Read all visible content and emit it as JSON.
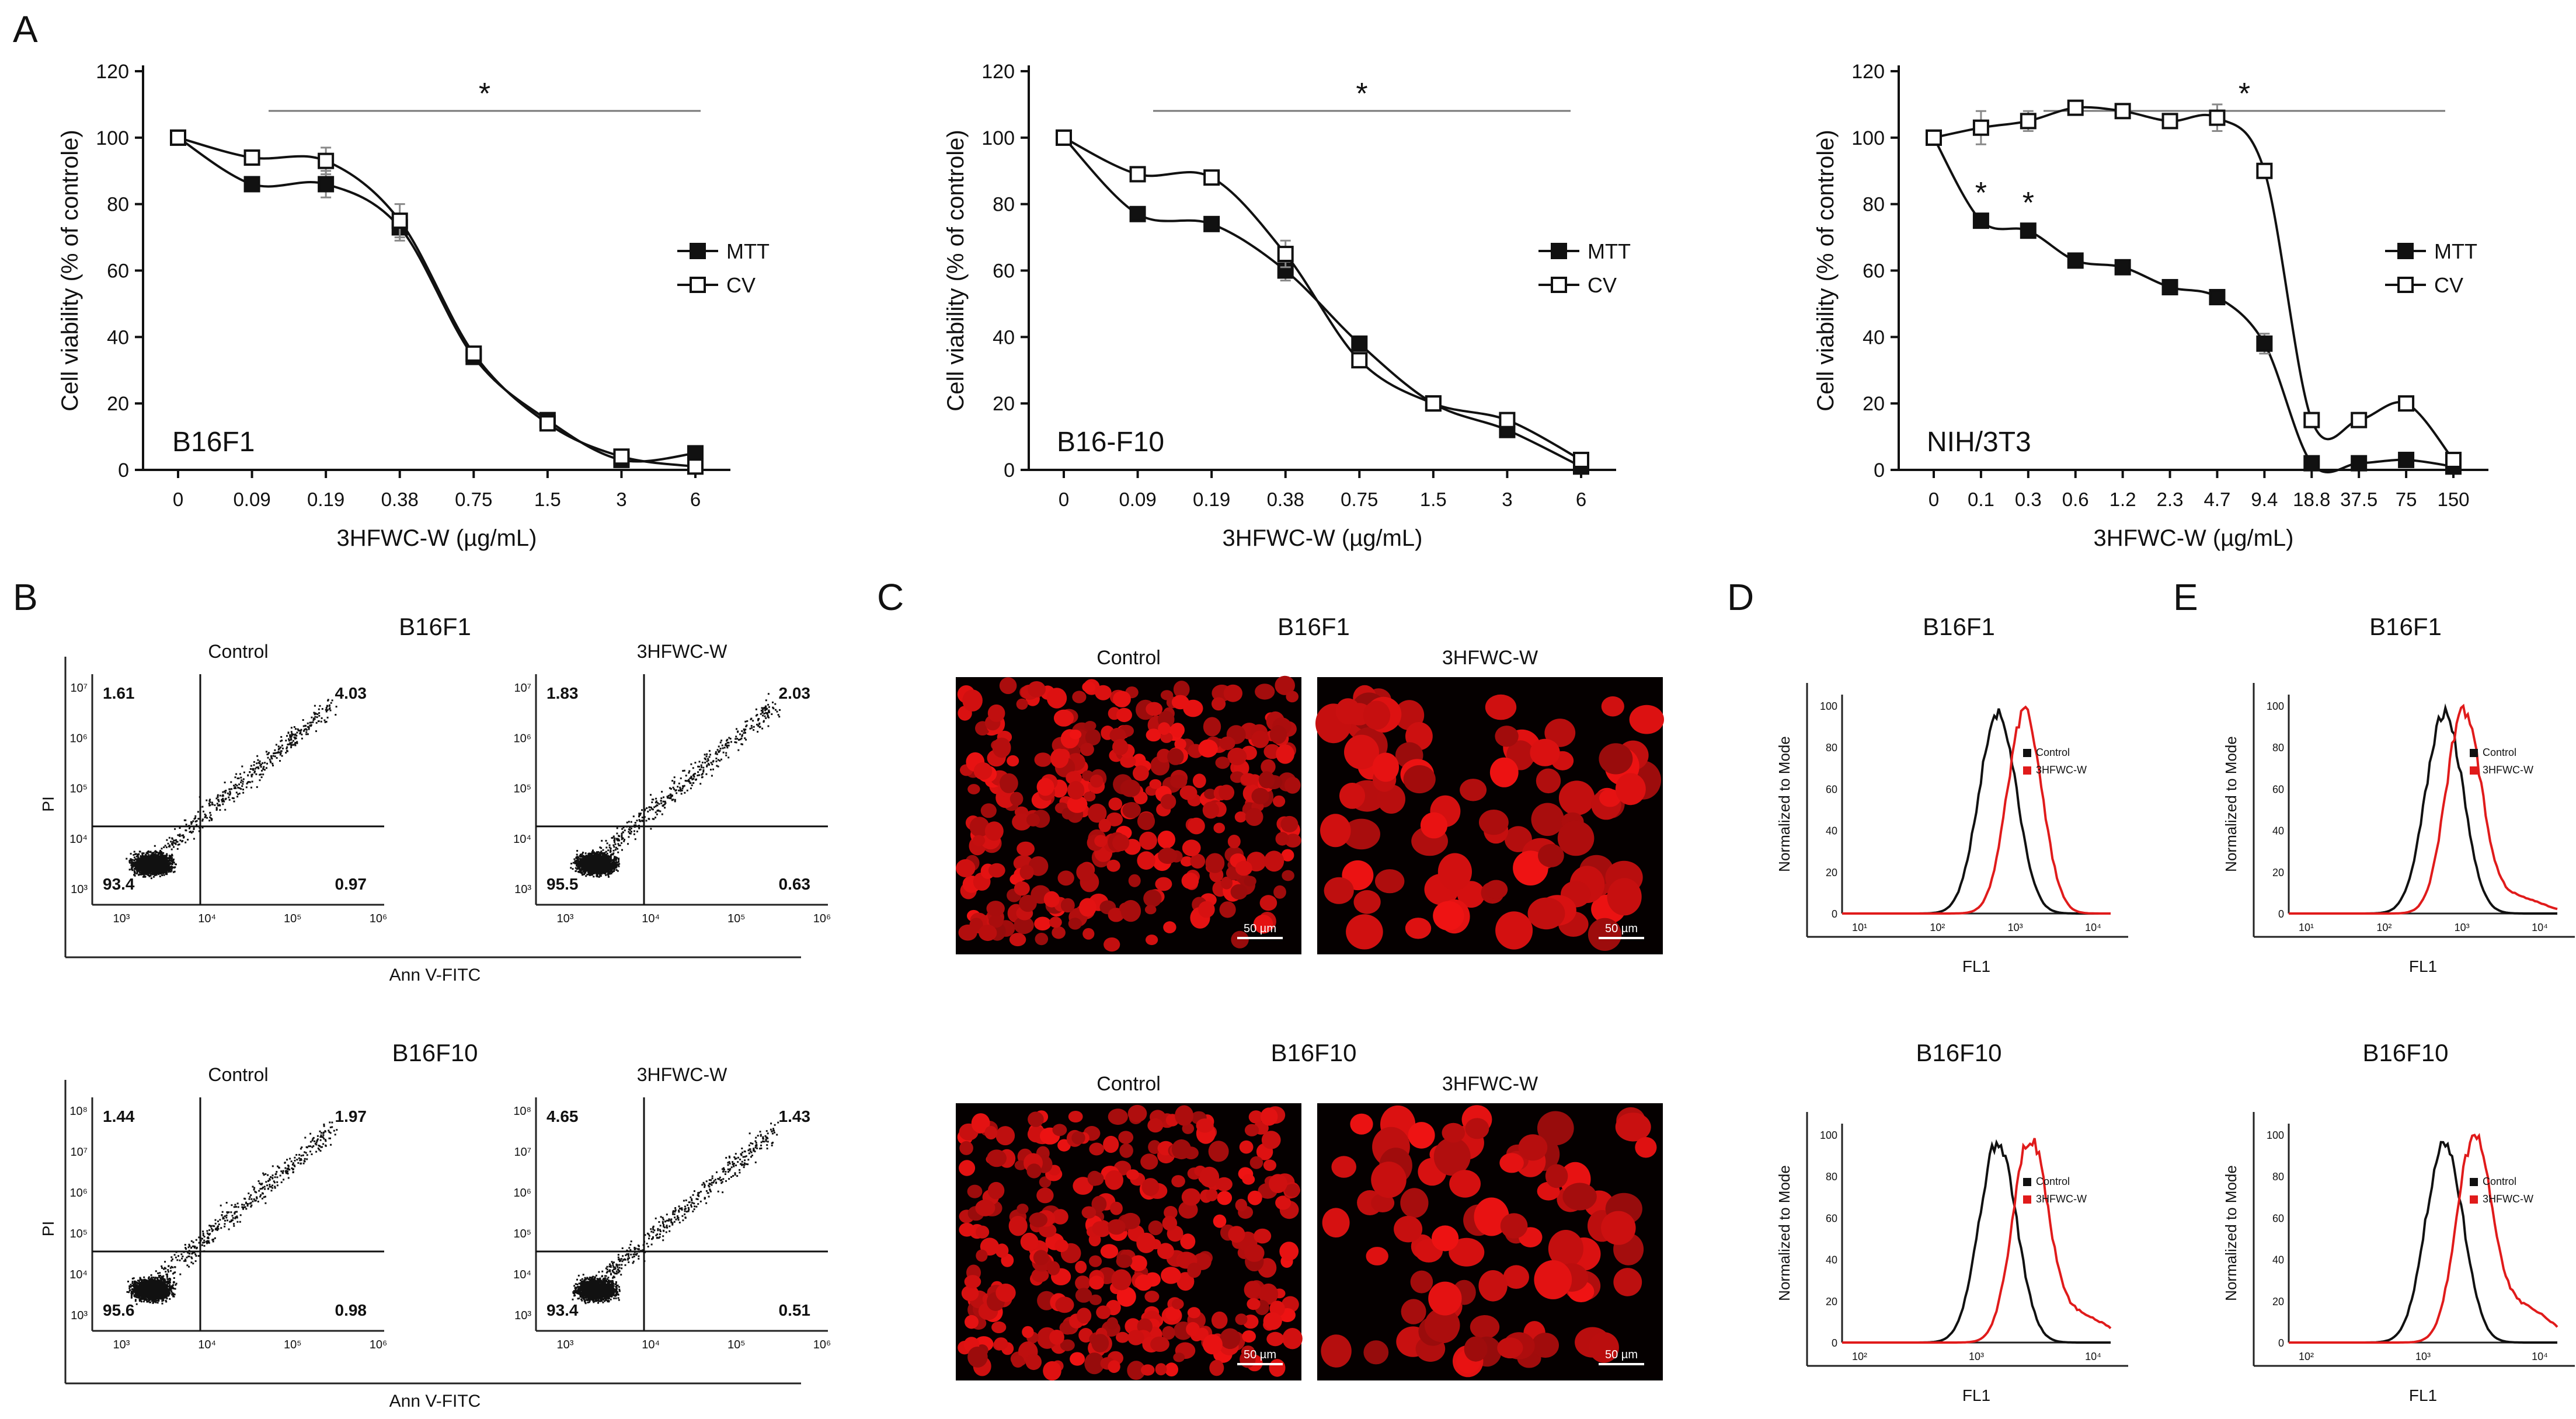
{
  "panel_labels": [
    "A",
    "B",
    "C",
    "D",
    "E"
  ],
  "chart_data": [
    {
      "type": "line",
      "id": "B16F1",
      "cell_line": "B16F1",
      "categories": [
        "0",
        "0.09",
        "0.19",
        "0.38",
        "0.75",
        "1.5",
        "3",
        "6"
      ],
      "series": [
        {
          "name": "MTT",
          "marker": "filled-square",
          "values": [
            100,
            86,
            86,
            73,
            34,
            15,
            3,
            5
          ],
          "errors": [
            0,
            1,
            4,
            4,
            1,
            1,
            1,
            1
          ]
        },
        {
          "name": "CV",
          "marker": "open-square",
          "values": [
            100,
            94,
            93,
            75,
            35,
            14,
            4,
            1
          ],
          "errors": [
            0,
            1,
            4,
            5,
            1,
            1,
            1,
            1
          ]
        }
      ],
      "xlabel": "3HFWC-W (µg/mL)",
      "ylabel": "Cell viability (% of controle)",
      "ylim": [
        0,
        120
      ],
      "yticks": [
        "0",
        "20",
        "40",
        "60",
        "80",
        "100",
        "120"
      ],
      "significance": "*"
    },
    {
      "type": "line",
      "id": "B16F10",
      "cell_line": "B16-F10",
      "categories": [
        "0",
        "0.09",
        "0.19",
        "0.38",
        "0.75",
        "1.5",
        "3",
        "6"
      ],
      "series": [
        {
          "name": "MTT",
          "marker": "filled-square",
          "values": [
            100,
            77,
            74,
            60,
            38,
            20,
            12,
            1
          ],
          "errors": [
            0,
            1,
            1,
            3,
            1,
            1,
            1,
            1
          ]
        },
        {
          "name": "CV",
          "marker": "open-square",
          "values": [
            100,
            89,
            88,
            65,
            33,
            20,
            15,
            3
          ],
          "errors": [
            0,
            2,
            1,
            4,
            1,
            1,
            1,
            1
          ]
        }
      ],
      "xlabel": "3HFWC-W (µg/mL)",
      "ylabel": "Cell viability (% of controle)",
      "ylim": [
        0,
        120
      ],
      "yticks": [
        "0",
        "20",
        "40",
        "60",
        "80",
        "100",
        "120"
      ],
      "significance": "*"
    },
    {
      "type": "line",
      "id": "NIH3T3",
      "cell_line": "NIH/3T3",
      "categories": [
        "0",
        "0.1",
        "0.3",
        "0.6",
        "1.2",
        "2.3",
        "4.7",
        "9.4",
        "18.8",
        "37.5",
        "75",
        "150"
      ],
      "series": [
        {
          "name": "MTT",
          "marker": "filled-square",
          "values": [
            100,
            75,
            72,
            63,
            61,
            55,
            52,
            38,
            2,
            2,
            3,
            1
          ],
          "errors": [
            0,
            1,
            1,
            2,
            1,
            2,
            1,
            3,
            1,
            1,
            1,
            1
          ]
        },
        {
          "name": "CV",
          "marker": "open-square",
          "values": [
            100,
            103,
            105,
            109,
            108,
            105,
            106,
            90,
            15,
            15,
            20,
            3
          ],
          "errors": [
            0,
            5,
            3,
            2,
            1,
            1,
            4,
            1,
            1,
            1,
            1,
            1
          ]
        }
      ],
      "xlabel": "3HFWC-W (µg/mL)",
      "ylabel": "Cell viability (% of controle)",
      "ylim": [
        0,
        120
      ],
      "yticks": [
        "0",
        "20",
        "40",
        "60",
        "80",
        "100",
        "120"
      ],
      "significance": "*",
      "point_significance": [
        "*",
        "*"
      ]
    }
  ],
  "panel_b": {
    "rows": [
      {
        "title": "B16F1",
        "ylabel": "PI",
        "xlabel": "Ann V-FITC",
        "yticks": [
          "10³",
          "10⁴",
          "10⁵",
          "10⁶",
          "10⁷"
        ],
        "xticks": [
          "10³",
          "10⁴",
          "10⁵",
          "10⁶"
        ],
        "plots": [
          {
            "label": "Control",
            "quadrants": {
              "ul": "1.61",
              "ur": "4.03",
              "ll": "93.4",
              "lr": "0.97"
            }
          },
          {
            "label": "3HFWC-W",
            "quadrants": {
              "ul": "1.83",
              "ur": "2.03",
              "ll": "95.5",
              "lr": "0.63"
            }
          }
        ]
      },
      {
        "title": "B16F10",
        "ylabel": "PI",
        "xlabel": "Ann V-FITC",
        "yticks": [
          "10³",
          "10⁴",
          "10⁵",
          "10⁶",
          "10⁷",
          "10⁸"
        ],
        "xticks": [
          "10³",
          "10⁴",
          "10⁵",
          "10⁶"
        ],
        "plots": [
          {
            "label": "Control",
            "quadrants": {
              "ul": "1.44",
              "ur": "1.97",
              "ll": "95.6",
              "lr": "0.98"
            }
          },
          {
            "label": "3HFWC-W",
            "quadrants": {
              "ul": "4.65",
              "ur": "1.43",
              "ll": "93.4",
              "lr": "0.51"
            }
          }
        ]
      }
    ]
  },
  "panel_c": {
    "rows": [
      {
        "title": "B16F1",
        "left_label": "Control",
        "right_label": "3HFWC-W",
        "scale_bar": "50 µm"
      },
      {
        "title": "B16F10",
        "left_label": "Control",
        "right_label": "3HFWC-W",
        "scale_bar": "50 µm"
      }
    ]
  },
  "histograms": {
    "ylabel": "Normalized to Mode",
    "xlabel": "FL1",
    "yticks": [
      "0",
      "20",
      "40",
      "60",
      "80",
      "100"
    ],
    "xticks": [
      "10¹",
      "10²",
      "10³",
      "10⁴"
    ],
    "xticks_bottom": [
      "10²",
      "10³",
      "10⁴"
    ],
    "legend": [
      "Control",
      "3HFWC-W"
    ],
    "colors": {
      "control": "#111111",
      "treated": "#e01b1b"
    },
    "panels": {
      "D": {
        "top_title": "B16F1",
        "bottom_title": "B16F10"
      },
      "E": {
        "top_title": "B16F1",
        "bottom_title": "B16F10"
      }
    }
  }
}
